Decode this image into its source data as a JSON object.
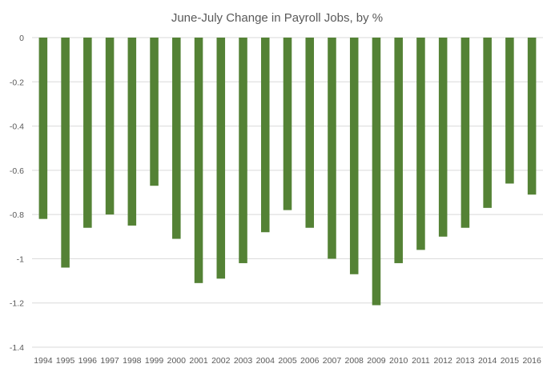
{
  "chart_data": {
    "type": "bar",
    "title": "June-July Change in Payroll Jobs, by %",
    "xlabel": "",
    "ylabel": "",
    "ylim": [
      -1.4,
      0
    ],
    "yticks": [
      0,
      -0.2,
      -0.4,
      -0.6,
      -0.8,
      -1,
      -1.2,
      -1.4
    ],
    "ytick_labels": [
      "0",
      "-0.2",
      "-0.4",
      "-0.6",
      "-0.8",
      "-1",
      "-1.2",
      "-1.4"
    ],
    "grid": true,
    "legend": "none",
    "bar_color": "#548235",
    "categories": [
      "1994",
      "1995",
      "1996",
      "1997",
      "1998",
      "1999",
      "2000",
      "2001",
      "2002",
      "2003",
      "2004",
      "2005",
      "2006",
      "2007",
      "2008",
      "2009",
      "2010",
      "2011",
      "2012",
      "2013",
      "2014",
      "2015",
      "2016"
    ],
    "values": [
      -0.82,
      -1.04,
      -0.86,
      -0.8,
      -0.85,
      -0.67,
      -0.91,
      -1.11,
      -1.09,
      -1.02,
      -0.88,
      -0.78,
      -0.86,
      -1.0,
      -1.07,
      -1.21,
      -1.02,
      -0.96,
      -0.9,
      -0.86,
      -0.77,
      -0.66,
      -0.71
    ]
  }
}
